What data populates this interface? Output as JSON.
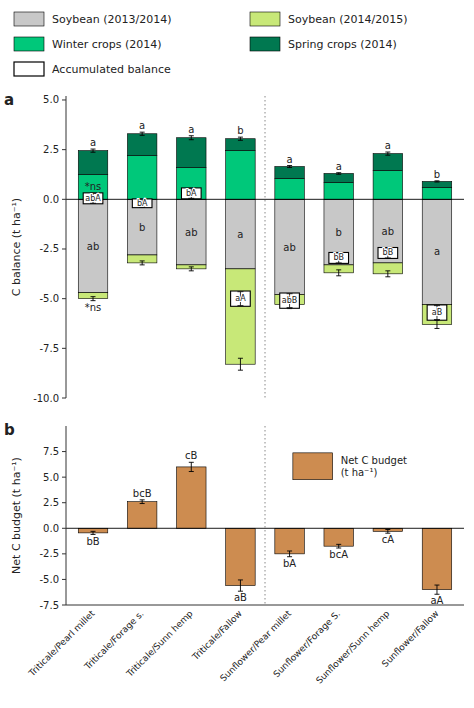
{
  "chart_data": [
    {
      "type": "bar",
      "title": "a",
      "y_label": "C balance (t ha⁻¹)",
      "categories": [
        "Triticale/Pearl millet",
        "Triticale/Forage s.",
        "Triticale/Sunn hemp",
        "Triticale/Fallow",
        "Sunflower/Pear millet",
        "Sunflower/Forage S.",
        "Sunflower/Sunn hemp",
        "Sunflower/Fallow"
      ],
      "stacked": true,
      "tick_labels": "y",
      "legend": "top",
      "grid": false,
      "ylim": [
        -10.0,
        5.2
      ],
      "yticks": [
        {
          "value": -10.0,
          "label": "-10.0"
        },
        -7.5,
        {
          "value": -5.0,
          "label": "-5.0"
        },
        -2.5,
        {
          "value": 0.0,
          "label": "0.0"
        },
        2.5,
        {
          "value": 5.0,
          "label": "5.0"
        }
      ],
      "series": [
        {
          "name": "Soybean (2013/2014)",
          "color": "#c8c8c8",
          "values": [
            -4.7,
            -2.8,
            -3.3,
            -3.5,
            -4.8,
            -3.3,
            -3.2,
            -5.3
          ],
          "annotations": [
            "ab",
            "b",
            "ab",
            "a",
            "ab",
            "b",
            "ab",
            "a"
          ]
        },
        {
          "name": "Soybean (2014/2015)",
          "color": "#c8e878",
          "values": [
            -0.3,
            -0.4,
            -0.2,
            -4.8,
            -0.5,
            -0.4,
            -0.55,
            -1.0
          ],
          "error": [
            0.1,
            0.1,
            0.1,
            0.3,
            0.2,
            0.15,
            0.15,
            0.2
          ],
          "annotations": [
            "*ns",
            null,
            null,
            null,
            null,
            null,
            null,
            null
          ]
        },
        {
          "name": "Winter crops (2014)",
          "color": "#00c87a",
          "values": [
            1.25,
            2.2,
            1.6,
            2.45,
            1.05,
            0.85,
            1.45,
            0.6
          ],
          "annotations": [
            "*ns",
            null,
            null,
            null,
            null,
            null,
            null,
            null
          ]
        },
        {
          "name": "Spring crops (2014)",
          "color": "#007850",
          "values": [
            1.2,
            1.1,
            1.5,
            0.6,
            0.6,
            0.45,
            0.85,
            0.3
          ],
          "error": [
            0.08,
            0.08,
            0.1,
            0.08,
            0.05,
            0.04,
            0.08,
            0.03
          ],
          "annotations": [
            "a",
            "a",
            "a",
            "b",
            "a",
            "a",
            "a",
            "b"
          ]
        },
        {
          "name": "Accumulated balance",
          "type": "scatter",
          "marker": "box",
          "color": "#ffffff",
          "values": [
            0.05,
            -0.2,
            0.3,
            -5.0,
            -5.1,
            -2.95,
            -2.7,
            -5.7
          ],
          "error": [
            0.25,
            0.2,
            0.25,
            0.35,
            0.35,
            0.25,
            0.25,
            0.35
          ],
          "annotations": [
            "abA",
            "bA",
            "bA",
            "aA",
            "abB",
            "bB",
            "bB",
            "aB"
          ]
        }
      ]
    },
    {
      "type": "bar",
      "title": "b",
      "y_label": "Net C budget (t ha⁻¹)",
      "categories": [
        "Triticale/Pearl millet",
        "Triticale/Forage s.",
        "Triticale/Sunn hemp",
        "Triticale/Fallow",
        "Sunflower/Pear millet",
        "Sunflower/Forage S.",
        "Sunflower/Sunn hemp",
        "Sunflower/Fallow"
      ],
      "legend": "upper right",
      "grid": false,
      "ylim": [
        -7.5,
        10.0
      ],
      "yticks": [
        -7.5,
        {
          "value": -5.0,
          "label": "-5.0"
        },
        -2.5,
        {
          "value": 0.0,
          "label": "0.0"
        },
        2.5,
        {
          "value": 5.0,
          "label": "5.0"
        },
        7.5
      ],
      "series": [
        {
          "name": "Net C budget\n(t ha⁻¹)",
          "color": "#cd8c50",
          "values": [
            -0.45,
            2.6,
            6.0,
            -5.6,
            -2.5,
            -1.75,
            -0.3,
            -6.0
          ],
          "error": [
            0.15,
            0.18,
            0.45,
            0.55,
            0.28,
            0.18,
            0.18,
            0.45
          ],
          "annotations": [
            "bB",
            "bcB",
            "cB",
            "aB",
            "bA",
            "bcA",
            "cA",
            "aA"
          ]
        }
      ]
    }
  ]
}
